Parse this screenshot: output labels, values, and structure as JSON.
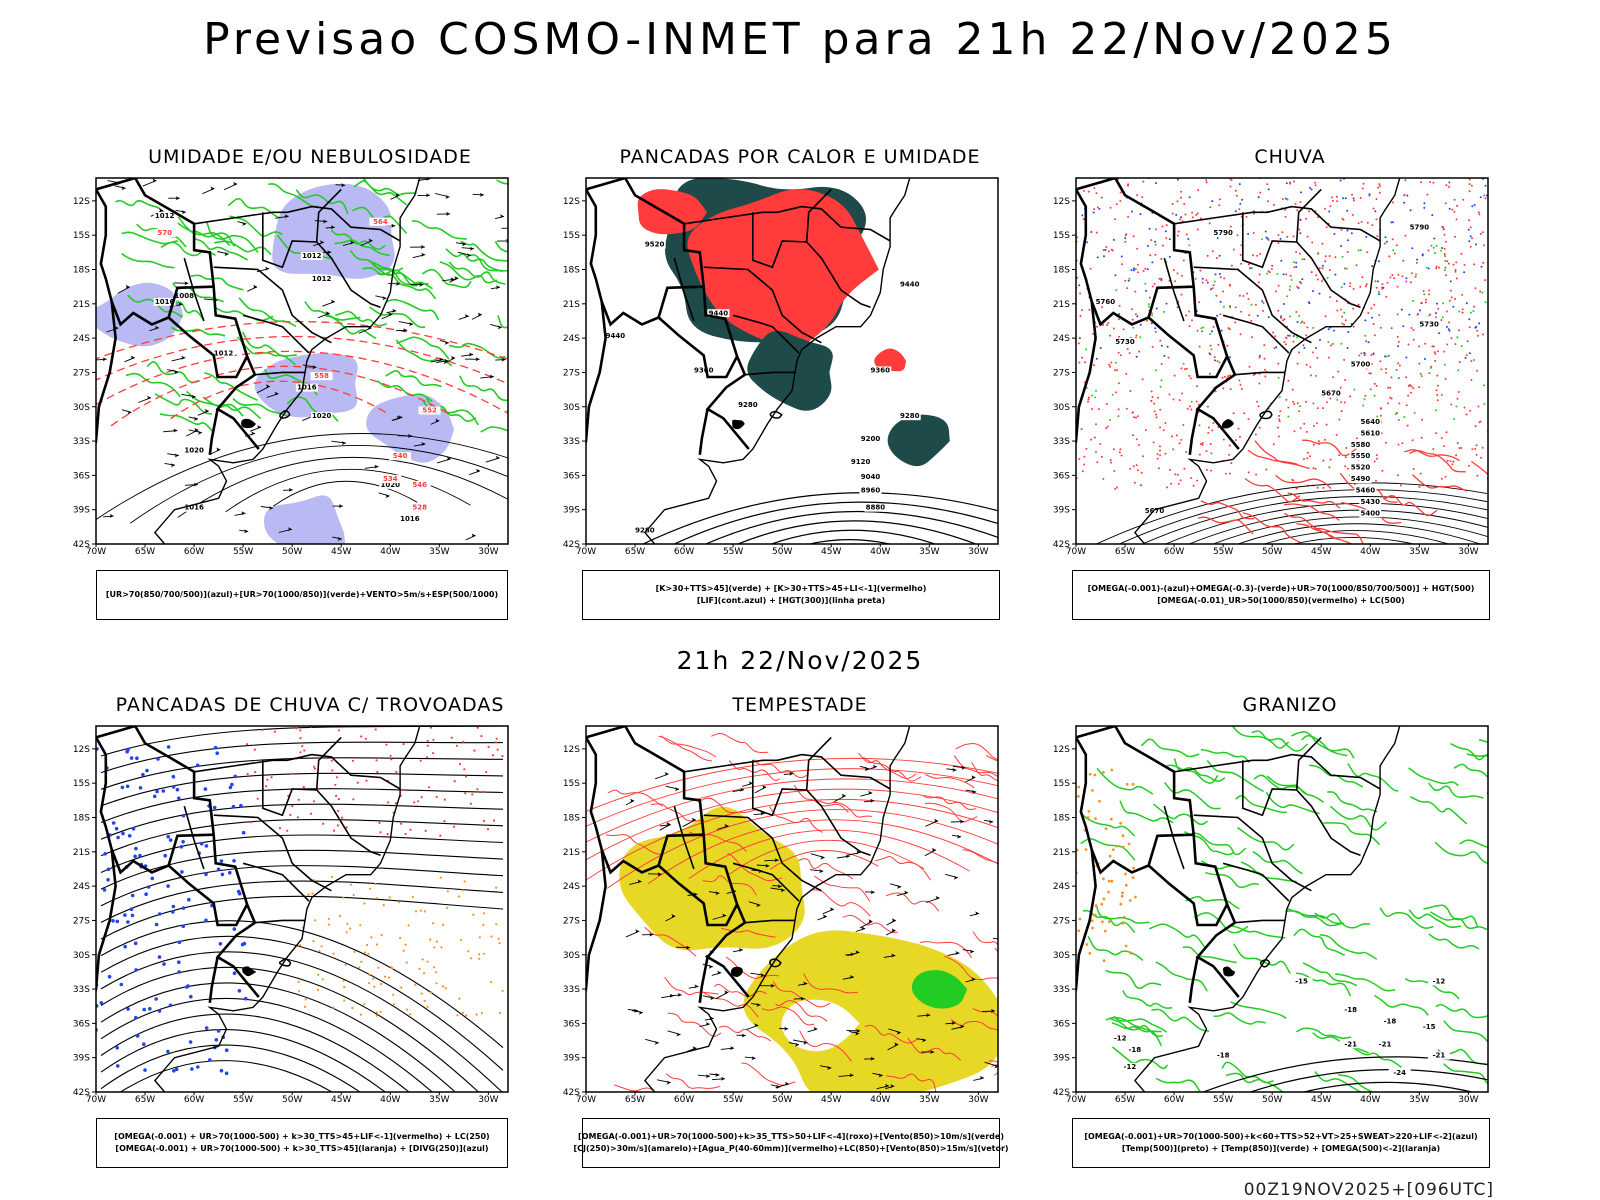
{
  "header": {
    "title": "Previsao COSMO-INMET  para 21h 22/Nov/2025",
    "mid_date": "21h 22/Nov/2025",
    "run_stamp": "00Z19NOV2025+[096UTC]"
  },
  "axes": {
    "lat_labels": [
      "12S",
      "15S",
      "18S",
      "21S",
      "24S",
      "27S",
      "30S",
      "33S",
      "36S",
      "39S",
      "42S"
    ],
    "lon_labels": [
      "70W",
      "65W",
      "60W",
      "55W",
      "50W",
      "45W",
      "40W",
      "35W",
      "30W"
    ]
  },
  "colors": {
    "blue_fill": "#a8a8f0",
    "green": "#22cc22",
    "red": "#ff3b3b",
    "dark_teal": "#1f4a4a",
    "yellow": "#e6d825",
    "orange": "#ff9020",
    "blue_dot": "#2244ee",
    "border": "#000000"
  },
  "panels": [
    {
      "id": "umidade",
      "title": "UMIDADE E/OU NEBULOSIDADE",
      "legend": [
        "[UR>70(850/700/500)](azul)+[UR>70(1000/850)](verde)+VENTO>5m/s+ESP(500/1000)"
      ],
      "contour_labels": [
        "1012",
        "1012",
        "1012",
        "1008",
        "1016",
        "1012",
        "1016",
        "1020",
        "1020",
        "1020",
        "1016",
        "1016"
      ],
      "red_labels": [
        "540",
        "546",
        "552",
        "558",
        "564",
        "570",
        "534",
        "528"
      ]
    },
    {
      "id": "pancadas-calor",
      "title": "PANCADAS POR CALOR E UMIDADE",
      "legend": [
        "[K>30+TTS>45](verde) + [K>30+TTS>45+LI<-1](vermelho)",
        "[LIF](cont.azul) + [HGT(300)](linha preta)"
      ],
      "contour_labels": [
        "9520",
        "9440",
        "9440",
        "9360",
        "9360",
        "9280",
        "9280",
        "9200",
        "9120",
        "9040",
        "8960",
        "8880",
        "9280",
        "9440"
      ]
    },
    {
      "id": "chuva",
      "title": "CHUVA",
      "legend": [
        "[OMEGA(-0.001)-(azul)+OMEGA(-0.3)-(verde)+UR>70(1000/850/700/500)] + HGT(500)",
        "[OMEGA(-0.01)_UR>50(1000/850)(vermelho) + LC(500)"
      ],
      "contour_labels": [
        "5790",
        "5790",
        "5760",
        "5730",
        "5730",
        "5700",
        "5670",
        "5640",
        "5610",
        "5580",
        "5550",
        "5520",
        "5490",
        "5460",
        "5430",
        "5400",
        "5670"
      ]
    },
    {
      "id": "trovoadas",
      "title": "PANCADAS DE CHUVA C/ TROVOADAS",
      "legend": [
        "[OMEGA(-0.001) + UR>70(1000-500) + k>30_TTS>45+LIF<-1](vermelho) + LC(250)",
        "[OMEGA(-0.001) + UR>70(1000-500) + k>30_TTS>45](laranja) + [DIVG(250)](azul)"
      ],
      "contour_labels": []
    },
    {
      "id": "tempestade",
      "title": "TEMPESTADE",
      "legend": [
        "[OMEGA(-0.001)+UR>70(1000-500)+k>35_TTS>50+LIF<-4](roxo)+[Vento(850)>10m/s](verde)",
        "[CJ(250)>30m/s](amarelo)+[Agua_P(40-60mm)](vermelho)+LC(850)+[Vento(850)>15m/s](vetor)"
      ],
      "contour_labels": []
    },
    {
      "id": "granizo",
      "title": "GRANIZO",
      "legend": [
        "[OMEGA(-0.001)+UR>70(1000-500)+k<60+TTS>52+VT>25+SWEAT>220+LIF<-2](azul)",
        "[Temp(500)](preto) + [Temp(850)](verde) + [OMEGA(500)<-2](laranja)"
      ],
      "contour_labels": [
        "-15",
        "-12",
        "-18",
        "-18",
        "-12",
        "-15",
        "-18",
        "-21",
        "-24",
        "-21",
        "-12",
        "-21",
        "-18"
      ]
    }
  ]
}
